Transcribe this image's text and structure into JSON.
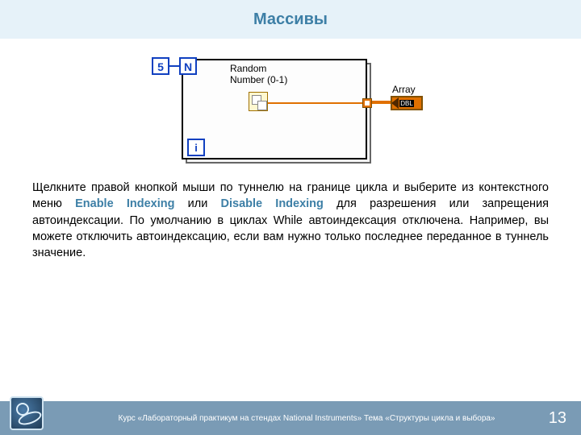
{
  "title": "Массивы",
  "diagram": {
    "constant_value": "5",
    "n_terminal": "N",
    "i_terminal": "i",
    "random_label_line1": "Random",
    "random_label_line2": "Number (0-1)",
    "array_label": "Array",
    "array_indicator_text": "DBL",
    "colors": {
      "loop_border": "#000000",
      "terminal_border": "#1040c0",
      "wire_orange": "#e07000",
      "wire_blue": "#1040c0"
    }
  },
  "paragraph": {
    "p1a": "Щелкните правой кнопкой мыши по туннелю на границе цикла и выберите из контекстного меню ",
    "enable": "Enable Indexing",
    "or": " или ",
    "disable": "Disable Indexing",
    "p1b": " для разрешения или запрещения автоиндексации. По умолчанию в циклах While автоиндексация отключена. Например, вы можете отключить автоиндексацию, если вам нужно только последнее переданное в туннель значение."
  },
  "footer": {
    "course_text": "Курс «Лабораторный практикум на стендах National Instruments» Тема «Структуры цикла и выбора»",
    "page_number": "13"
  }
}
